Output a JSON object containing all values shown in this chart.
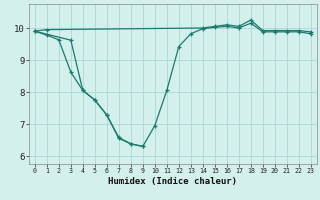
{
  "xlabel": "Humidex (Indice chaleur)",
  "line1_x": [
    0,
    1,
    14,
    15,
    16,
    17,
    18,
    19,
    20,
    21,
    22,
    23
  ],
  "line1_y": [
    9.9,
    9.95,
    10.0,
    10.05,
    10.1,
    10.05,
    10.25,
    9.92,
    9.92,
    9.92,
    9.92,
    9.88
  ],
  "line2_x": [
    0,
    1,
    2,
    3,
    4,
    5,
    6,
    7,
    8,
    9,
    10,
    11,
    12,
    13,
    14,
    15,
    16,
    17,
    18,
    19,
    20,
    21,
    22,
    23
  ],
  "line2_y": [
    9.9,
    9.78,
    9.63,
    8.62,
    8.05,
    7.75,
    7.28,
    6.55,
    6.38,
    6.3,
    6.95,
    8.05,
    9.42,
    9.82,
    9.98,
    10.02,
    10.05,
    10.0,
    10.15,
    9.88,
    9.88,
    9.88,
    9.88,
    9.82
  ],
  "line3_x": [
    0,
    3,
    4,
    5,
    6,
    7,
    8,
    9
  ],
  "line3_y": [
    9.9,
    9.62,
    8.05,
    7.75,
    7.28,
    6.58,
    6.38,
    6.3
  ],
  "color": "#1a7a6e",
  "bg_color": "#d4f0ec",
  "grid_color": "#aad8d3",
  "ylim": [
    5.75,
    10.75
  ],
  "xlim": [
    -0.5,
    23.5
  ],
  "yticks": [
    6,
    7,
    8,
    9,
    10
  ],
  "xticks": [
    0,
    1,
    2,
    3,
    4,
    5,
    6,
    7,
    8,
    9,
    10,
    11,
    12,
    13,
    14,
    15,
    16,
    17,
    18,
    19,
    20,
    21,
    22,
    23
  ]
}
